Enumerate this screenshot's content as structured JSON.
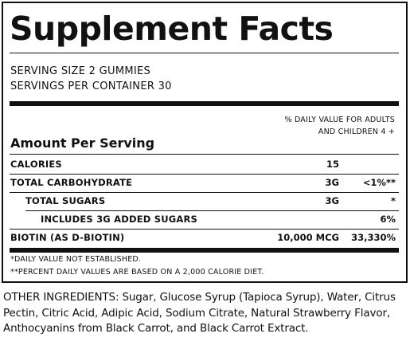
{
  "title": "Supplement Facts",
  "serving_size": "SERVING SIZE 2 GUMMIES",
  "servings_per_container": "SERVINGS PER CONTAINER 30",
  "daily_value_header": {
    "line1": "% DAILY VALUE FOR ADULTS",
    "line2": "AND CHILDREN 4 +"
  },
  "amount_per_serving": "Amount Per Serving",
  "nutrients": [
    {
      "name": "CALORIES",
      "amount": "15",
      "dv": ""
    },
    {
      "name": "TOTAL CARBOHYDRATE",
      "amount": "3G",
      "dv": "<1%**"
    },
    {
      "name": "TOTAL SUGARS",
      "amount": "3G",
      "dv": "*"
    },
    {
      "name": "INCLUDES 3G ADDED SUGARS",
      "amount": "",
      "dv": "6%"
    },
    {
      "name": "BIOTIN (AS D-BIOTIN)",
      "amount": "10,000 MCG",
      "dv": "33,330%"
    }
  ],
  "footnotes": [
    "*DAILY VALUE NOT ESTABLISHED.",
    "**PERCENT DAILY VALUES ARE BASED ON A 2,000 CALORIE DIET."
  ],
  "other_ingredients": "OTHER INGREDIENTS: Sugar, Glucose Syrup (Tapioca Syrup), Water, Citrus Pectin, Citric Acid, Adipic Acid, Sodium Citrate, Natural Strawberry Flavor, Anthocyanins from Black Carrot, and Black Carrot Extract."
}
